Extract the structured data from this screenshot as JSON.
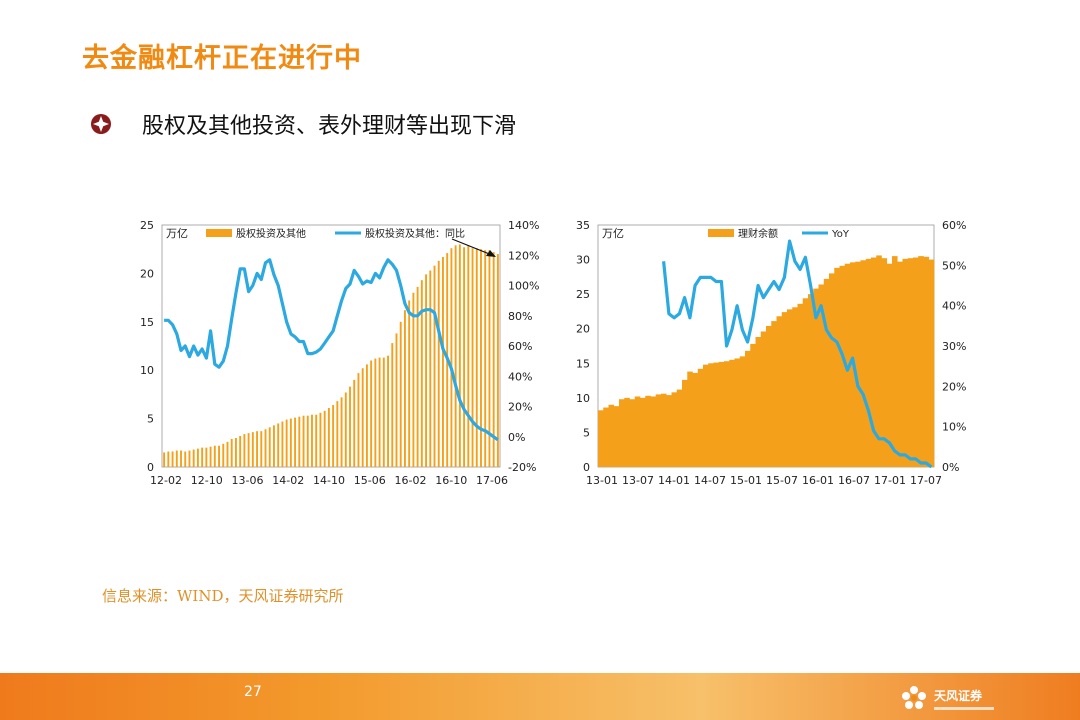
{
  "page": {
    "title": "去金融杠杆正在进行中",
    "bullet": "股权及其他投资、表外理财等出现下滑",
    "source": "信息来源：WIND，天风证券研究所",
    "page_number": "27",
    "logo_text": "天风证券"
  },
  "colors": {
    "title": "#f08a12",
    "bar": "#f5a01a",
    "line": "#2ba9e0",
    "source": "#e0912a"
  },
  "chart_data": [
    {
      "type": "bar",
      "unit_label": "万亿",
      "legend": [
        "股权投资及其他",
        "股权投资及其他：同比"
      ],
      "x_ticks": [
        "12-02",
        "12-10",
        "13-06",
        "14-02",
        "14-10",
        "15-06",
        "16-02",
        "16-10",
        "17-06"
      ],
      "y_left": {
        "range": [
          0,
          25
        ],
        "ticks": [
          "0",
          "5",
          "10",
          "15",
          "20",
          "25"
        ]
      },
      "y_right": {
        "range": [
          -20,
          140
        ],
        "ticks": [
          "-20%",
          "0%",
          "20%",
          "40%",
          "60%",
          "80%",
          "100%",
          "120%",
          "140%"
        ]
      },
      "series": [
        {
          "name": "股权投资及其他",
          "axis": "left",
          "kind": "bar",
          "values": [
            1.5,
            1.6,
            1.6,
            1.7,
            1.7,
            1.6,
            1.7,
            1.8,
            1.9,
            2.0,
            2.0,
            2.1,
            2.2,
            2.2,
            2.4,
            2.6,
            2.9,
            3.0,
            3.2,
            3.4,
            3.5,
            3.6,
            3.7,
            3.7,
            3.9,
            4.1,
            4.3,
            4.5,
            4.7,
            4.9,
            5.0,
            5.1,
            5.2,
            5.3,
            5.3,
            5.4,
            5.4,
            5.6,
            5.8,
            6.1,
            6.4,
            6.8,
            7.2,
            7.7,
            8.3,
            9.0,
            9.7,
            10.2,
            10.6,
            11.0,
            11.2,
            11.3,
            11.3,
            11.5,
            12.8,
            13.8,
            15.0,
            16.2,
            17.2,
            18.0,
            18.6,
            19.3,
            19.9,
            20.3,
            20.8,
            21.3,
            21.7,
            22.1,
            22.6,
            22.9,
            23.0,
            22.7,
            22.9,
            22.6,
            22.6,
            22.5,
            22.4,
            22.4,
            22.2,
            22.0
          ]
        },
        {
          "name": "股权投资及其他：同比",
          "axis": "right",
          "kind": "line",
          "values": [
            77,
            77,
            74,
            68,
            57,
            60,
            53,
            60,
            54,
            58,
            52,
            70,
            48,
            46,
            50,
            60,
            78,
            95,
            111,
            111,
            96,
            100,
            108,
            104,
            115,
            117,
            107,
            100,
            88,
            76,
            68,
            66,
            63,
            63,
            55,
            55,
            56,
            58,
            62,
            66,
            70,
            80,
            90,
            98,
            101,
            110,
            106,
            101,
            103,
            102,
            108,
            105,
            112,
            117,
            114,
            110,
            100,
            88,
            82,
            80,
            80,
            83,
            84,
            84,
            82,
            70,
            58,
            52,
            45,
            34,
            24,
            18,
            14,
            10,
            7,
            5,
            4,
            2,
            0,
            -2
          ]
        }
      ],
      "annotation": "arrow"
    },
    {
      "type": "bar",
      "unit_label": "万亿",
      "legend": [
        "理财余额",
        "YoY"
      ],
      "x_ticks": [
        "13-01",
        "13-07",
        "14-01",
        "14-07",
        "15-01",
        "15-07",
        "16-01",
        "16-07",
        "17-01",
        "17-07"
      ],
      "y_left": {
        "range": [
          0,
          35
        ],
        "ticks": [
          "0",
          "5",
          "10",
          "15",
          "20",
          "25",
          "30",
          "35"
        ]
      },
      "y_right": {
        "range": [
          0,
          60
        ],
        "ticks": [
          "0%",
          "10%",
          "20%",
          "30%",
          "40%",
          "50%",
          "60%"
        ]
      },
      "series": [
        {
          "name": "理财余额",
          "axis": "left",
          "kind": "bar",
          "values": [
            8.2,
            8.6,
            9.0,
            8.8,
            9.8,
            10.0,
            9.8,
            10.2,
            10.0,
            10.3,
            10.2,
            10.5,
            10.6,
            10.4,
            10.8,
            11.2,
            12.6,
            13.8,
            13.6,
            14.2,
            14.8,
            15.0,
            15.1,
            15.2,
            15.3,
            15.5,
            15.7,
            16.0,
            16.8,
            17.8,
            18.8,
            19.6,
            20.4,
            21.1,
            21.8,
            22.4,
            22.8,
            23.1,
            23.6,
            24.4,
            25.0,
            25.8,
            26.4,
            27.2,
            28.0,
            28.8,
            29.1,
            29.4,
            29.6,
            29.7,
            29.9,
            30.1,
            30.3,
            30.6,
            30.2,
            29.4,
            30.5,
            29.7,
            30.1,
            30.2,
            30.3,
            30.5,
            30.4,
            30.0
          ]
        },
        {
          "name": "YoY",
          "axis": "right",
          "kind": "line",
          "values": [
            null,
            null,
            null,
            null,
            null,
            null,
            null,
            null,
            null,
            null,
            null,
            null,
            51,
            38,
            37,
            38,
            42,
            37,
            45,
            47,
            47,
            47,
            46,
            46,
            30,
            34,
            40,
            34,
            31,
            37,
            45,
            42,
            44,
            46,
            44,
            47,
            56,
            51,
            49,
            52,
            45,
            37,
            40,
            34,
            32,
            31,
            28,
            24,
            27,
            20,
            18,
            14,
            9,
            7,
            7,
            6,
            4,
            3,
            3,
            2,
            2,
            1,
            1,
            0
          ]
        }
      ],
      "annotation": ""
    }
  ]
}
